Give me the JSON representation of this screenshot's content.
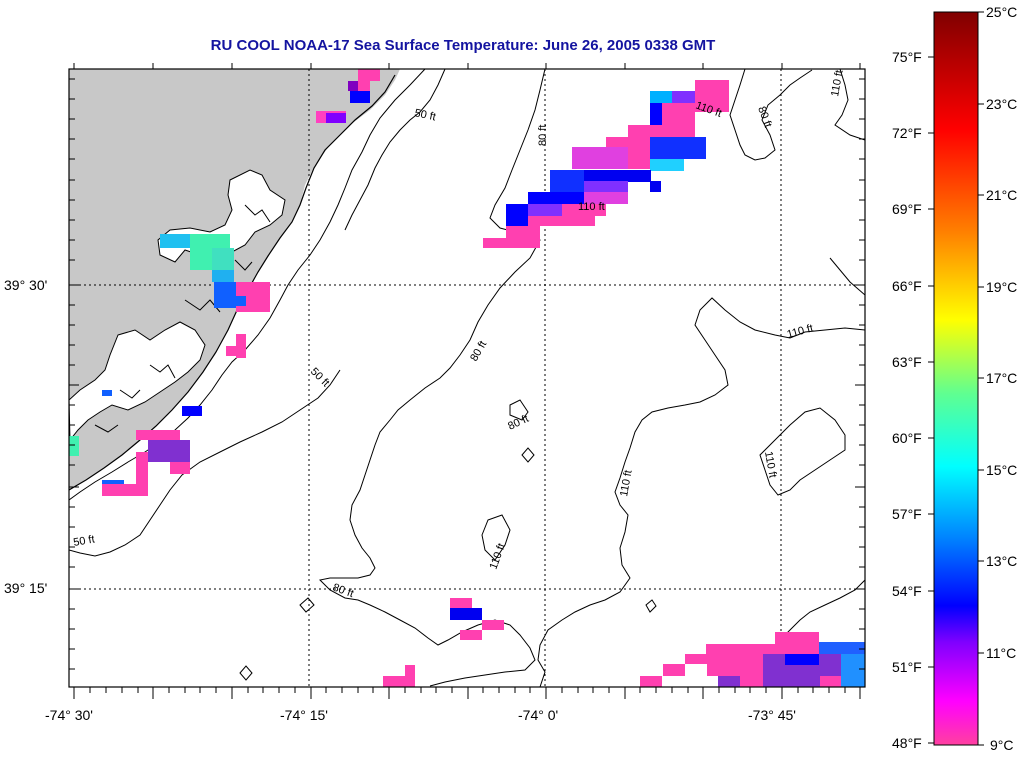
{
  "title": "RU COOL  NOAA-17  Sea Surface Temperature:  June 26, 2005 0338 GMT",
  "map": {
    "lon_labels": [
      "-74° 30'",
      "-74° 15'",
      "-74° 0'",
      "-73° 45'"
    ],
    "lat_labels": [
      "39° 30'",
      "39° 15'"
    ],
    "land_color": "#c8c8c8",
    "ocean_color": "#ffffff",
    "contour_labels": [
      "50 ft",
      "50 ft",
      "50 ft",
      "80 ft",
      "80 ft",
      "80 ft",
      "80 ft",
      "110 ft",
      "110 ft",
      "110 ft",
      "110 ft",
      "110 ft",
      "110 ft",
      "110 ft",
      "80 ft"
    ]
  },
  "colorbar": {
    "fahrenheit_labels": [
      "75°F",
      "72°F",
      "69°F",
      "66°F",
      "63°F",
      "60°F",
      "57°F",
      "54°F",
      "51°F",
      "48°F"
    ],
    "celsius_labels": [
      "25°C",
      "23°C",
      "21°C",
      "19°C",
      "17°C",
      "15°C",
      "13°C",
      "11°C",
      "9°C"
    ],
    "stops": [
      "#ff40a0",
      "#ff00ff",
      "#8000ff",
      "#0000ff",
      "#0080ff",
      "#00ffff",
      "#80ff80",
      "#ffff00",
      "#ff8000",
      "#ff0000",
      "#800000"
    ]
  }
}
